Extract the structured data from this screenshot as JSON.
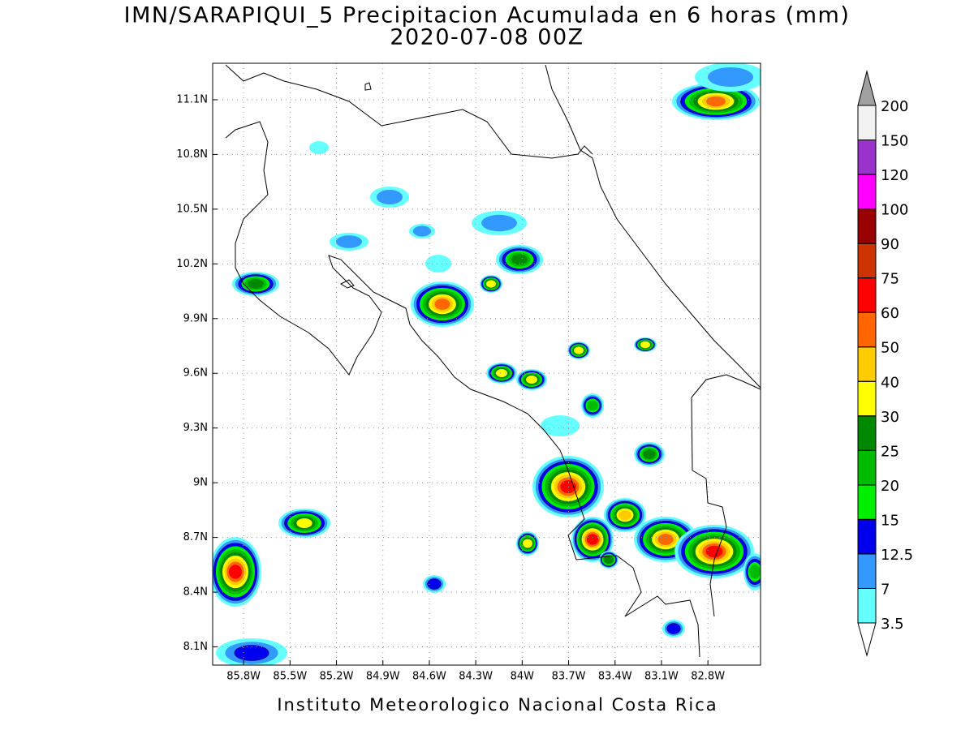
{
  "title": "IMN/SARAPIQUI_5 Precipitacion Acumulada en 6 horas (mm)",
  "subtitle": "2020-07-08 00Z",
  "map": {
    "xlim": [
      -86.0,
      -82.46
    ],
    "ylim": [
      8.0,
      11.3
    ],
    "xticks": [
      {
        "value": -85.8,
        "label": "85.8W"
      },
      {
        "value": -85.5,
        "label": "85.5W"
      },
      {
        "value": -85.2,
        "label": "85.2W"
      },
      {
        "value": -84.9,
        "label": "84.9W"
      },
      {
        "value": -84.6,
        "label": "84.6W"
      },
      {
        "value": -84.3,
        "label": "84.3W"
      },
      {
        "value": -84.0,
        "label": "84W"
      },
      {
        "value": -83.7,
        "label": "83.7W"
      },
      {
        "value": -83.4,
        "label": "83.4W"
      },
      {
        "value": -83.1,
        "label": "83.1W"
      },
      {
        "value": -82.8,
        "label": "82.8W"
      }
    ],
    "yticks": [
      {
        "value": 11.1,
        "label": "11.1N"
      },
      {
        "value": 10.8,
        "label": "10.8N"
      },
      {
        "value": 10.5,
        "label": "10.5N"
      },
      {
        "value": 10.2,
        "label": "10.2N"
      },
      {
        "value": 9.9,
        "label": "9.9N"
      },
      {
        "value": 9.6,
        "label": "9.6N"
      },
      {
        "value": 9.3,
        "label": "9.3N"
      },
      {
        "value": 9.0,
        "label": "9N"
      },
      {
        "value": 8.7,
        "label": "8.7N"
      },
      {
        "value": 8.4,
        "label": "8.4N"
      },
      {
        "value": 8.1,
        "label": "8.1N"
      }
    ],
    "grid": true
  },
  "colorbar": {
    "levels": [
      3.5,
      7,
      12.5,
      15,
      20,
      25,
      30,
      40,
      50,
      60,
      75,
      90,
      100,
      120,
      150,
      200
    ],
    "colors": [
      "#ffffff",
      "#66ffff",
      "#3399ff",
      "#0000ee",
      "#00ee00",
      "#00bb00",
      "#008800",
      "#ffff00",
      "#ffcc00",
      "#ff6600",
      "#ff0000",
      "#cc3300",
      "#990000",
      "#ff00ff",
      "#9933cc",
      "#f2f2f2",
      "#a0a0a0"
    ]
  },
  "footer": "Instituto Meteorologico Nacional Costa Rica"
}
